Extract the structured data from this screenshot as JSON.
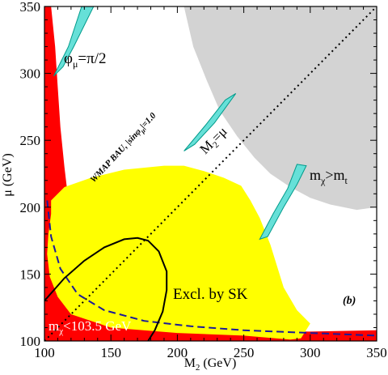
{
  "chart_data": {
    "type": "area",
    "title": "",
    "panel_label": "(b)",
    "xlabel": "M",
    "xlabel_sub": "2",
    "xlabel_unit": " (GeV)",
    "ylabel": "μ (GeV)",
    "xlim": [
      100,
      350
    ],
    "ylim": [
      100,
      350
    ],
    "x_ticks": [
      100,
      150,
      200,
      250,
      300,
      350
    ],
    "y_ticks": [
      100,
      150,
      200,
      250,
      300,
      350
    ],
    "grid": false,
    "colors": {
      "excluded_red": "#ff0000",
      "excluded_sk": "#ffff00",
      "mchi_gt_mt": "#d3d3d3",
      "wmap_band": "#66e0d8",
      "wmap_band_edge": "#009a8a",
      "mass_line": "#1a1a99",
      "contour": "#000000"
    },
    "annotations": {
      "phase": {
        "text_main": "φ",
        "text_sub": "μ",
        "text_tail": "=π/2"
      },
      "wmap": {
        "text": "WMAP BAU, |sinφ",
        "text_sub": "μ",
        "text_tail": "|=1.0"
      },
      "diagonal": {
        "text_main": "M",
        "text_sub": "2",
        "text_tail": "=μ"
      },
      "mchi_mt": {
        "text_main": "m",
        "text_sub": "χ",
        "text_mid": ">m",
        "text_sub2": "t"
      },
      "sk": {
        "text": "Excl. by SK"
      },
      "mchi_limit": {
        "text_main": "m",
        "text_sub": "χ",
        "text_tail": "<103.5 GeV"
      }
    },
    "regions": [
      {
        "name": "Excluded (red)",
        "color_key": "excluded_red",
        "points": [
          [
            100,
            350
          ],
          [
            105,
            350
          ],
          [
            108,
            320
          ],
          [
            110,
            290
          ],
          [
            112,
            260
          ],
          [
            115,
            230
          ],
          [
            118,
            205
          ],
          [
            122,
            190
          ],
          [
            116,
            175
          ],
          [
            112,
            160
          ],
          [
            115,
            145
          ],
          [
            122,
            133
          ],
          [
            135,
            123
          ],
          [
            150,
            116
          ],
          [
            170,
            111
          ],
          [
            200,
            109
          ],
          [
            250,
            108
          ],
          [
            300,
            107
          ],
          [
            350,
            108
          ],
          [
            350,
            100
          ],
          [
            100,
            100
          ]
        ]
      },
      {
        "name": "Excl. by SK",
        "color_key": "excluded_sk",
        "points": [
          [
            105,
            205
          ],
          [
            115,
            215
          ],
          [
            135,
            222
          ],
          [
            160,
            228
          ],
          [
            190,
            231
          ],
          [
            205,
            231
          ],
          [
            220,
            227
          ],
          [
            235,
            222
          ],
          [
            248,
            216
          ],
          [
            255,
            205
          ],
          [
            262,
            192
          ],
          [
            270,
            172
          ],
          [
            280,
            140
          ],
          [
            290,
            123
          ],
          [
            300,
            113
          ],
          [
            293,
            102
          ],
          [
            285,
            101
          ],
          [
            250,
            104
          ],
          [
            200,
            106
          ],
          [
            150,
            110
          ],
          [
            120,
            120
          ],
          [
            110,
            133
          ],
          [
            104,
            148
          ],
          [
            102,
            165
          ],
          [
            103,
            180
          ],
          [
            105,
            195
          ]
        ]
      },
      {
        "name": "m_chi > m_t",
        "color_key": "mchi_gt_mt",
        "points": [
          [
            205,
            350
          ],
          [
            350,
            350
          ],
          [
            350,
            200
          ],
          [
            335,
            198
          ],
          [
            315,
            202
          ],
          [
            300,
            207
          ],
          [
            285,
            215
          ],
          [
            270,
            225
          ],
          [
            258,
            237
          ],
          [
            245,
            253
          ],
          [
            232,
            272
          ],
          [
            222,
            295
          ],
          [
            212,
            320
          ]
        ]
      }
    ],
    "bands": [
      {
        "name": "WMAP BAU upper-left",
        "color_key": "wmap_band",
        "points": [
          [
            128,
            350
          ],
          [
            137,
            350
          ],
          [
            122,
            320
          ],
          [
            114,
            305
          ],
          [
            107,
            298
          ],
          [
            118,
            320
          ]
        ]
      },
      {
        "name": "WMAP BAU middle",
        "color_key": "wmap_band",
        "points": [
          [
            236,
            280
          ],
          [
            244,
            285
          ],
          [
            228,
            263
          ],
          [
            213,
            247
          ],
          [
            205,
            242
          ],
          [
            221,
            261
          ]
        ]
      },
      {
        "name": "WMAP BAU lower-right",
        "color_key": "wmap_band",
        "points": [
          [
            290,
            232
          ],
          [
            297,
            231
          ],
          [
            290,
            217
          ],
          [
            280,
            200
          ],
          [
            268,
            178
          ],
          [
            262,
            176
          ],
          [
            272,
            195
          ],
          [
            283,
            214
          ]
        ]
      }
    ],
    "lines": [
      {
        "name": "M2 = mu",
        "style": "dotted",
        "color_key": "contour",
        "points": [
          [
            100,
            100
          ],
          [
            350,
            350
          ]
        ]
      },
      {
        "name": "m_chi = 103.5 GeV",
        "style": "dashed",
        "color_key": "mass_line",
        "points": [
          [
            102,
            205
          ],
          [
            105,
            178
          ],
          [
            112,
            154
          ],
          [
            125,
            135
          ],
          [
            145,
            123
          ],
          [
            175,
            115
          ],
          [
            210,
            111
          ],
          [
            250,
            108
          ],
          [
            300,
            106
          ],
          [
            350,
            104
          ]
        ]
      },
      {
        "name": "closed contour",
        "style": "solid",
        "color_key": "contour",
        "points": [
          [
            100,
            130
          ],
          [
            115,
            147
          ],
          [
            130,
            160
          ],
          [
            145,
            170
          ],
          [
            160,
            176
          ],
          [
            170,
            177
          ],
          [
            178,
            175
          ],
          [
            186,
            167
          ],
          [
            192,
            152
          ],
          [
            192,
            138
          ],
          [
            189,
            122
          ],
          [
            183,
            108
          ],
          [
            178,
            100
          ]
        ]
      }
    ]
  }
}
